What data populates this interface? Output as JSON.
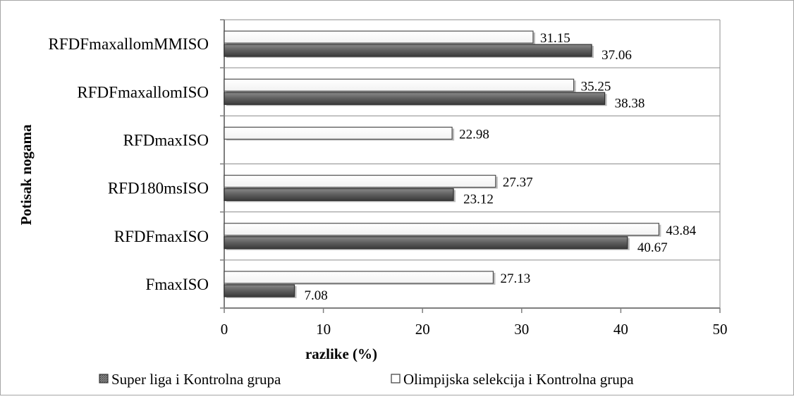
{
  "chart_data": {
    "type": "bar",
    "orientation": "horizontal",
    "categories": [
      "FmaxISO",
      "RFDFmaxISO",
      "RFD180msISO",
      "RFDmaxISO",
      "RFDFmaxallomISO",
      "RFDFmaxallomMMISO"
    ],
    "series": [
      {
        "name": "Olimpijska selekcija i Kontrolna grupa",
        "values": [
          27.13,
          43.84,
          27.37,
          22.98,
          35.25,
          31.15
        ],
        "labels": [
          "27.13",
          "43.84",
          "27.37",
          "22.98",
          "35.25",
          "31.15"
        ],
        "color": "#ffffff"
      },
      {
        "name": "Super liga i Kontrolna grupa",
        "values": [
          7.08,
          40.67,
          23.12,
          null,
          38.38,
          37.06
        ],
        "labels": [
          "7.08",
          "40.67",
          "23.12",
          "",
          "38.38",
          "37.06"
        ],
        "color": "#5a5a5a"
      }
    ],
    "legend_order": [
      "Super liga i Kontrolna grupa",
      "Olimpijska selekcija i Kontrolna grupa"
    ],
    "legend_position": "bottom",
    "title": "",
    "xlabel": "razlike (%)",
    "ylabel": "Potisak nogama",
    "xlim": [
      0,
      50
    ],
    "xticks": [
      0,
      10,
      20,
      30,
      40,
      50
    ],
    "grid": "horizontal category separators",
    "colors": {
      "border": "#a6a6a6",
      "grid": "#8c8c8c",
      "axis": "#7f7f7f",
      "text": "#000000"
    }
  }
}
